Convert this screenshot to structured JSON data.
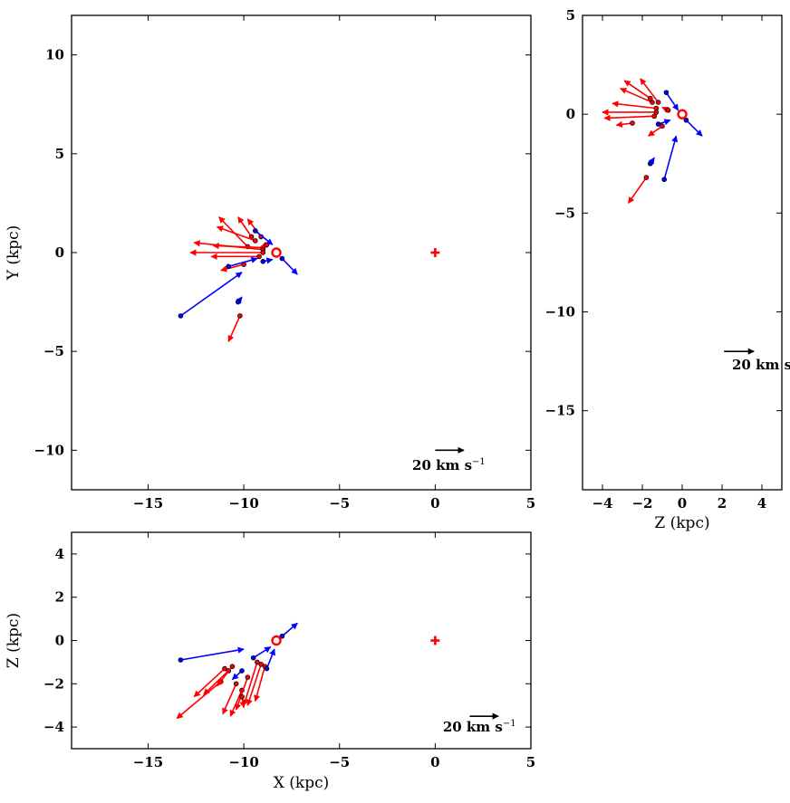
{
  "colors": {
    "disk": "#ff0000",
    "halo": "#0000ff",
    "scale": "#000000",
    "frame": "#000000"
  },
  "scale_label": "20 km s",
  "scale_sup": "−1",
  "chart_data": [
    {
      "type": "scatter",
      "id": "xy",
      "xlabel": "",
      "ylabel": "Y (kpc)",
      "xlim": [
        -19,
        5
      ],
      "ylim": [
        -12,
        12
      ],
      "xticks": [
        -15,
        -10,
        -5,
        0,
        5
      ],
      "yticks": [
        -10,
        -5,
        0,
        5,
        10
      ],
      "xtick_labels": [
        "−15",
        "−10",
        "−5",
        "0",
        "5"
      ],
      "ytick_labels": [
        "−10",
        "−5",
        "0",
        "5",
        "10"
      ],
      "show_x_tick_labels": true,
      "sun": [
        -8.3,
        0
      ],
      "center_marker": [
        0,
        0
      ],
      "scale_vector": {
        "x": 0,
        "y": -10,
        "dx": 1.5,
        "dy": 0,
        "label_at": [
          -1.2,
          -11.0
        ]
      },
      "vectors": [
        {
          "group": "disk",
          "x": -10.2,
          "y": -3.2,
          "dx": -0.6,
          "dy": -1.3
        },
        {
          "group": "disk",
          "x": -9.8,
          "y": 0.3,
          "dx": -1.5,
          "dy": 1.5
        },
        {
          "group": "disk",
          "x": -9.6,
          "y": 0.8,
          "dx": -0.7,
          "dy": 1.0
        },
        {
          "group": "disk",
          "x": -9.4,
          "y": 0.6,
          "dx": -2.0,
          "dy": 0.7
        },
        {
          "group": "disk",
          "x": -9.1,
          "y": 0.8,
          "dx": -0.7,
          "dy": 0.9
        },
        {
          "group": "disk",
          "x": -9.0,
          "y": 0.25,
          "dx": -2.6,
          "dy": 0.1
        },
        {
          "group": "disk",
          "x": -9.0,
          "y": 0.15,
          "dx": -3.6,
          "dy": 0.35
        },
        {
          "group": "disk",
          "x": -9.0,
          "y": 0.0,
          "dx": -3.8,
          "dy": 0.0
        },
        {
          "group": "disk",
          "x": -9.2,
          "y": -0.2,
          "dx": -2.5,
          "dy": 0.0
        },
        {
          "group": "disk",
          "x": -10.0,
          "y": -0.6,
          "dx": -1.2,
          "dy": -0.3
        },
        {
          "group": "disk",
          "x": -8.8,
          "y": 0.4,
          "dx": -0.3,
          "dy": -0.1
        },
        {
          "group": "halo",
          "x": -13.3,
          "y": -3.2,
          "dx": 3.2,
          "dy": 2.2
        },
        {
          "group": "halo",
          "x": -10.8,
          "y": -0.7,
          "dx": 1.5,
          "dy": 0.4
        },
        {
          "group": "halo",
          "x": -9.0,
          "y": -0.45,
          "dx": 0.5,
          "dy": 0.1
        },
        {
          "group": "halo",
          "x": -9.4,
          "y": 1.1,
          "dx": 0.9,
          "dy": -0.7
        },
        {
          "group": "halo",
          "x": -8.0,
          "y": -0.3,
          "dx": 0.8,
          "dy": -0.8
        },
        {
          "group": "halo",
          "x": -10.3,
          "y": -2.5,
          "dx": 0.2,
          "dy": 0.25
        }
      ]
    },
    {
      "type": "scatter",
      "id": "zy",
      "xlabel": "Z (kpc)",
      "ylabel": "",
      "xlim": [
        -5,
        5
      ],
      "ylim": [
        -19,
        5
      ],
      "xticks": [
        -4,
        -2,
        0,
        2,
        4
      ],
      "yticks": [
        -15,
        -10,
        -5,
        0,
        5
      ],
      "xtick_labels": [
        "−4",
        "−2",
        "0",
        "2",
        "4"
      ],
      "ytick_labels": [
        "−15",
        "−10",
        "−5",
        "0",
        "5"
      ],
      "show_x_tick_labels": true,
      "sun": [
        0,
        0
      ],
      "center_marker": null,
      "scale_vector": {
        "x": 2.1,
        "y": -12,
        "dx": 1.5,
        "dy": 0,
        "label_at": [
          2.5,
          -12.9
        ]
      },
      "vectors": [
        {
          "group": "disk",
          "x": -1.8,
          "y": -3.2,
          "dx": -0.9,
          "dy": -1.3
        },
        {
          "group": "disk",
          "x": -1.6,
          "y": 0.8,
          "dx": -1.3,
          "dy": 0.9
        },
        {
          "group": "disk",
          "x": -1.5,
          "y": 0.6,
          "dx": -1.6,
          "dy": 0.7
        },
        {
          "group": "disk",
          "x": -1.3,
          "y": 0.3,
          "dx": -2.2,
          "dy": 0.25
        },
        {
          "group": "disk",
          "x": -1.3,
          "y": 0.1,
          "dx": -2.7,
          "dy": 0.0
        },
        {
          "group": "disk",
          "x": -1.4,
          "y": -0.1,
          "dx": -2.5,
          "dy": -0.1
        },
        {
          "group": "disk",
          "x": -2.5,
          "y": -0.45,
          "dx": -0.8,
          "dy": -0.1
        },
        {
          "group": "disk",
          "x": -1.2,
          "y": 0.6,
          "dx": -0.9,
          "dy": 1.2
        },
        {
          "group": "disk",
          "x": -0.7,
          "y": 0.2,
          "dx": -0.3,
          "dy": 0.15
        },
        {
          "group": "disk",
          "x": -1.0,
          "y": -0.6,
          "dx": -0.7,
          "dy": -0.5
        },
        {
          "group": "halo",
          "x": -0.9,
          "y": -3.3,
          "dx": 0.6,
          "dy": 2.2
        },
        {
          "group": "halo",
          "x": -1.6,
          "y": -2.5,
          "dx": 0.2,
          "dy": 0.3
        },
        {
          "group": "halo",
          "x": 0.2,
          "y": -0.3,
          "dx": 0.8,
          "dy": -0.8
        },
        {
          "group": "halo",
          "x": -0.8,
          "y": 1.1,
          "dx": 0.6,
          "dy": -0.9
        },
        {
          "group": "halo",
          "x": -1.2,
          "y": -0.5,
          "dx": 0.6,
          "dy": 0.2
        }
      ]
    },
    {
      "type": "scatter",
      "id": "xz",
      "xlabel": "X (kpc)",
      "ylabel": "Z (kpc)",
      "xlim": [
        -19,
        5
      ],
      "ylim": [
        -5,
        5
      ],
      "xticks": [
        -15,
        -10,
        -5,
        0,
        5
      ],
      "yticks": [
        -4,
        -2,
        0,
        2,
        4
      ],
      "xtick_labels": [
        "−15",
        "−10",
        "−5",
        "0",
        "5"
      ],
      "ytick_labels": [
        "−4",
        "−2",
        "0",
        "2",
        "4"
      ],
      "show_x_tick_labels": true,
      "sun": [
        -8.3,
        0
      ],
      "center_marker": [
        0,
        0
      ],
      "scale_vector": {
        "x": 1.8,
        "y": -3.5,
        "dx": 1.5,
        "dy": 0,
        "label_at": [
          0.4,
          -4.2
        ]
      },
      "vectors": [
        {
          "group": "disk",
          "x": -11.0,
          "y": -1.3,
          "dx": -1.6,
          "dy": -1.3
        },
        {
          "group": "disk",
          "x": -11.2,
          "y": -1.9,
          "dx": -2.3,
          "dy": -1.7
        },
        {
          "group": "disk",
          "x": -10.8,
          "y": -1.4,
          "dx": -1.3,
          "dy": -1.1
        },
        {
          "group": "disk",
          "x": -10.6,
          "y": -1.2,
          "dx": -0.8,
          "dy": -0.9
        },
        {
          "group": "disk",
          "x": -10.4,
          "y": -2.0,
          "dx": -0.7,
          "dy": -1.4
        },
        {
          "group": "disk",
          "x": -10.1,
          "y": -2.3,
          "dx": -0.6,
          "dy": -1.2
        },
        {
          "group": "disk",
          "x": -9.8,
          "y": -1.7,
          "dx": -0.6,
          "dy": -1.5
        },
        {
          "group": "disk",
          "x": -9.3,
          "y": -1.0,
          "dx": -0.7,
          "dy": -2.0
        },
        {
          "group": "disk",
          "x": -9.1,
          "y": -1.1,
          "dx": -0.7,
          "dy": -1.9
        },
        {
          "group": "disk",
          "x": -8.9,
          "y": -1.2,
          "dx": -0.5,
          "dy": -1.6
        },
        {
          "group": "disk",
          "x": -10.1,
          "y": -2.6,
          "dx": 0.1,
          "dy": -0.5
        },
        {
          "group": "halo",
          "x": -13.3,
          "y": -0.9,
          "dx": 3.3,
          "dy": 0.5
        },
        {
          "group": "halo",
          "x": -10.1,
          "y": -1.4,
          "dx": -0.5,
          "dy": -0.4
        },
        {
          "group": "halo",
          "x": -8.0,
          "y": 0.2,
          "dx": 0.8,
          "dy": 0.6
        },
        {
          "group": "halo",
          "x": -9.5,
          "y": -0.8,
          "dx": 0.9,
          "dy": 0.5
        },
        {
          "group": "halo",
          "x": -8.8,
          "y": -1.3,
          "dx": 0.4,
          "dy": 0.9
        }
      ]
    }
  ]
}
